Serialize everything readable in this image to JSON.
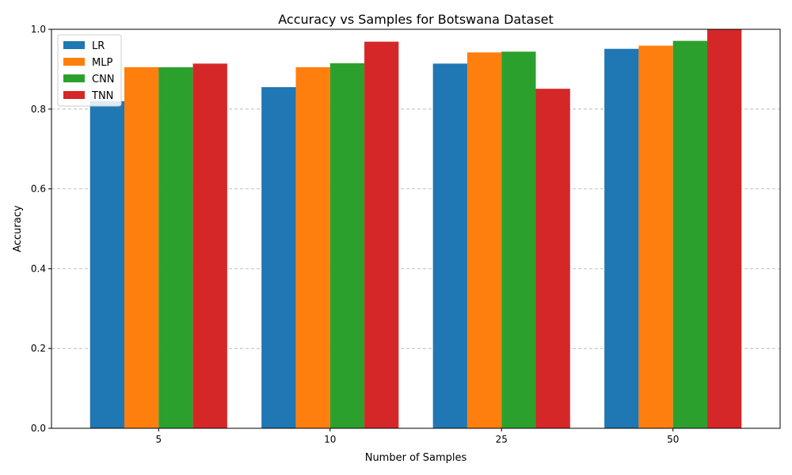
{
  "chart_data": {
    "type": "bar",
    "title": "Accuracy vs Samples for Botswana Dataset",
    "xlabel": "Number of Samples",
    "ylabel": "Accuracy",
    "categories": [
      "5",
      "10",
      "25",
      "50"
    ],
    "ylim": [
      0,
      1.0
    ],
    "yticks": [
      "0.0",
      "0.2",
      "0.4",
      "0.6",
      "0.8",
      "1.0"
    ],
    "grid": "y-dashed",
    "legend_position": "top-left",
    "series": [
      {
        "name": "LR",
        "color": "#1f77b4",
        "values": [
          0.82,
          0.855,
          0.914,
          0.951
        ]
      },
      {
        "name": "MLP",
        "color": "#ff7f0e",
        "values": [
          0.905,
          0.905,
          0.942,
          0.959
        ]
      },
      {
        "name": "CNN",
        "color": "#2ca02c",
        "values": [
          0.905,
          0.915,
          0.944,
          0.971
        ]
      },
      {
        "name": "TNN",
        "color": "#d62728",
        "values": [
          0.914,
          0.969,
          0.851,
          1.0
        ]
      }
    ]
  }
}
